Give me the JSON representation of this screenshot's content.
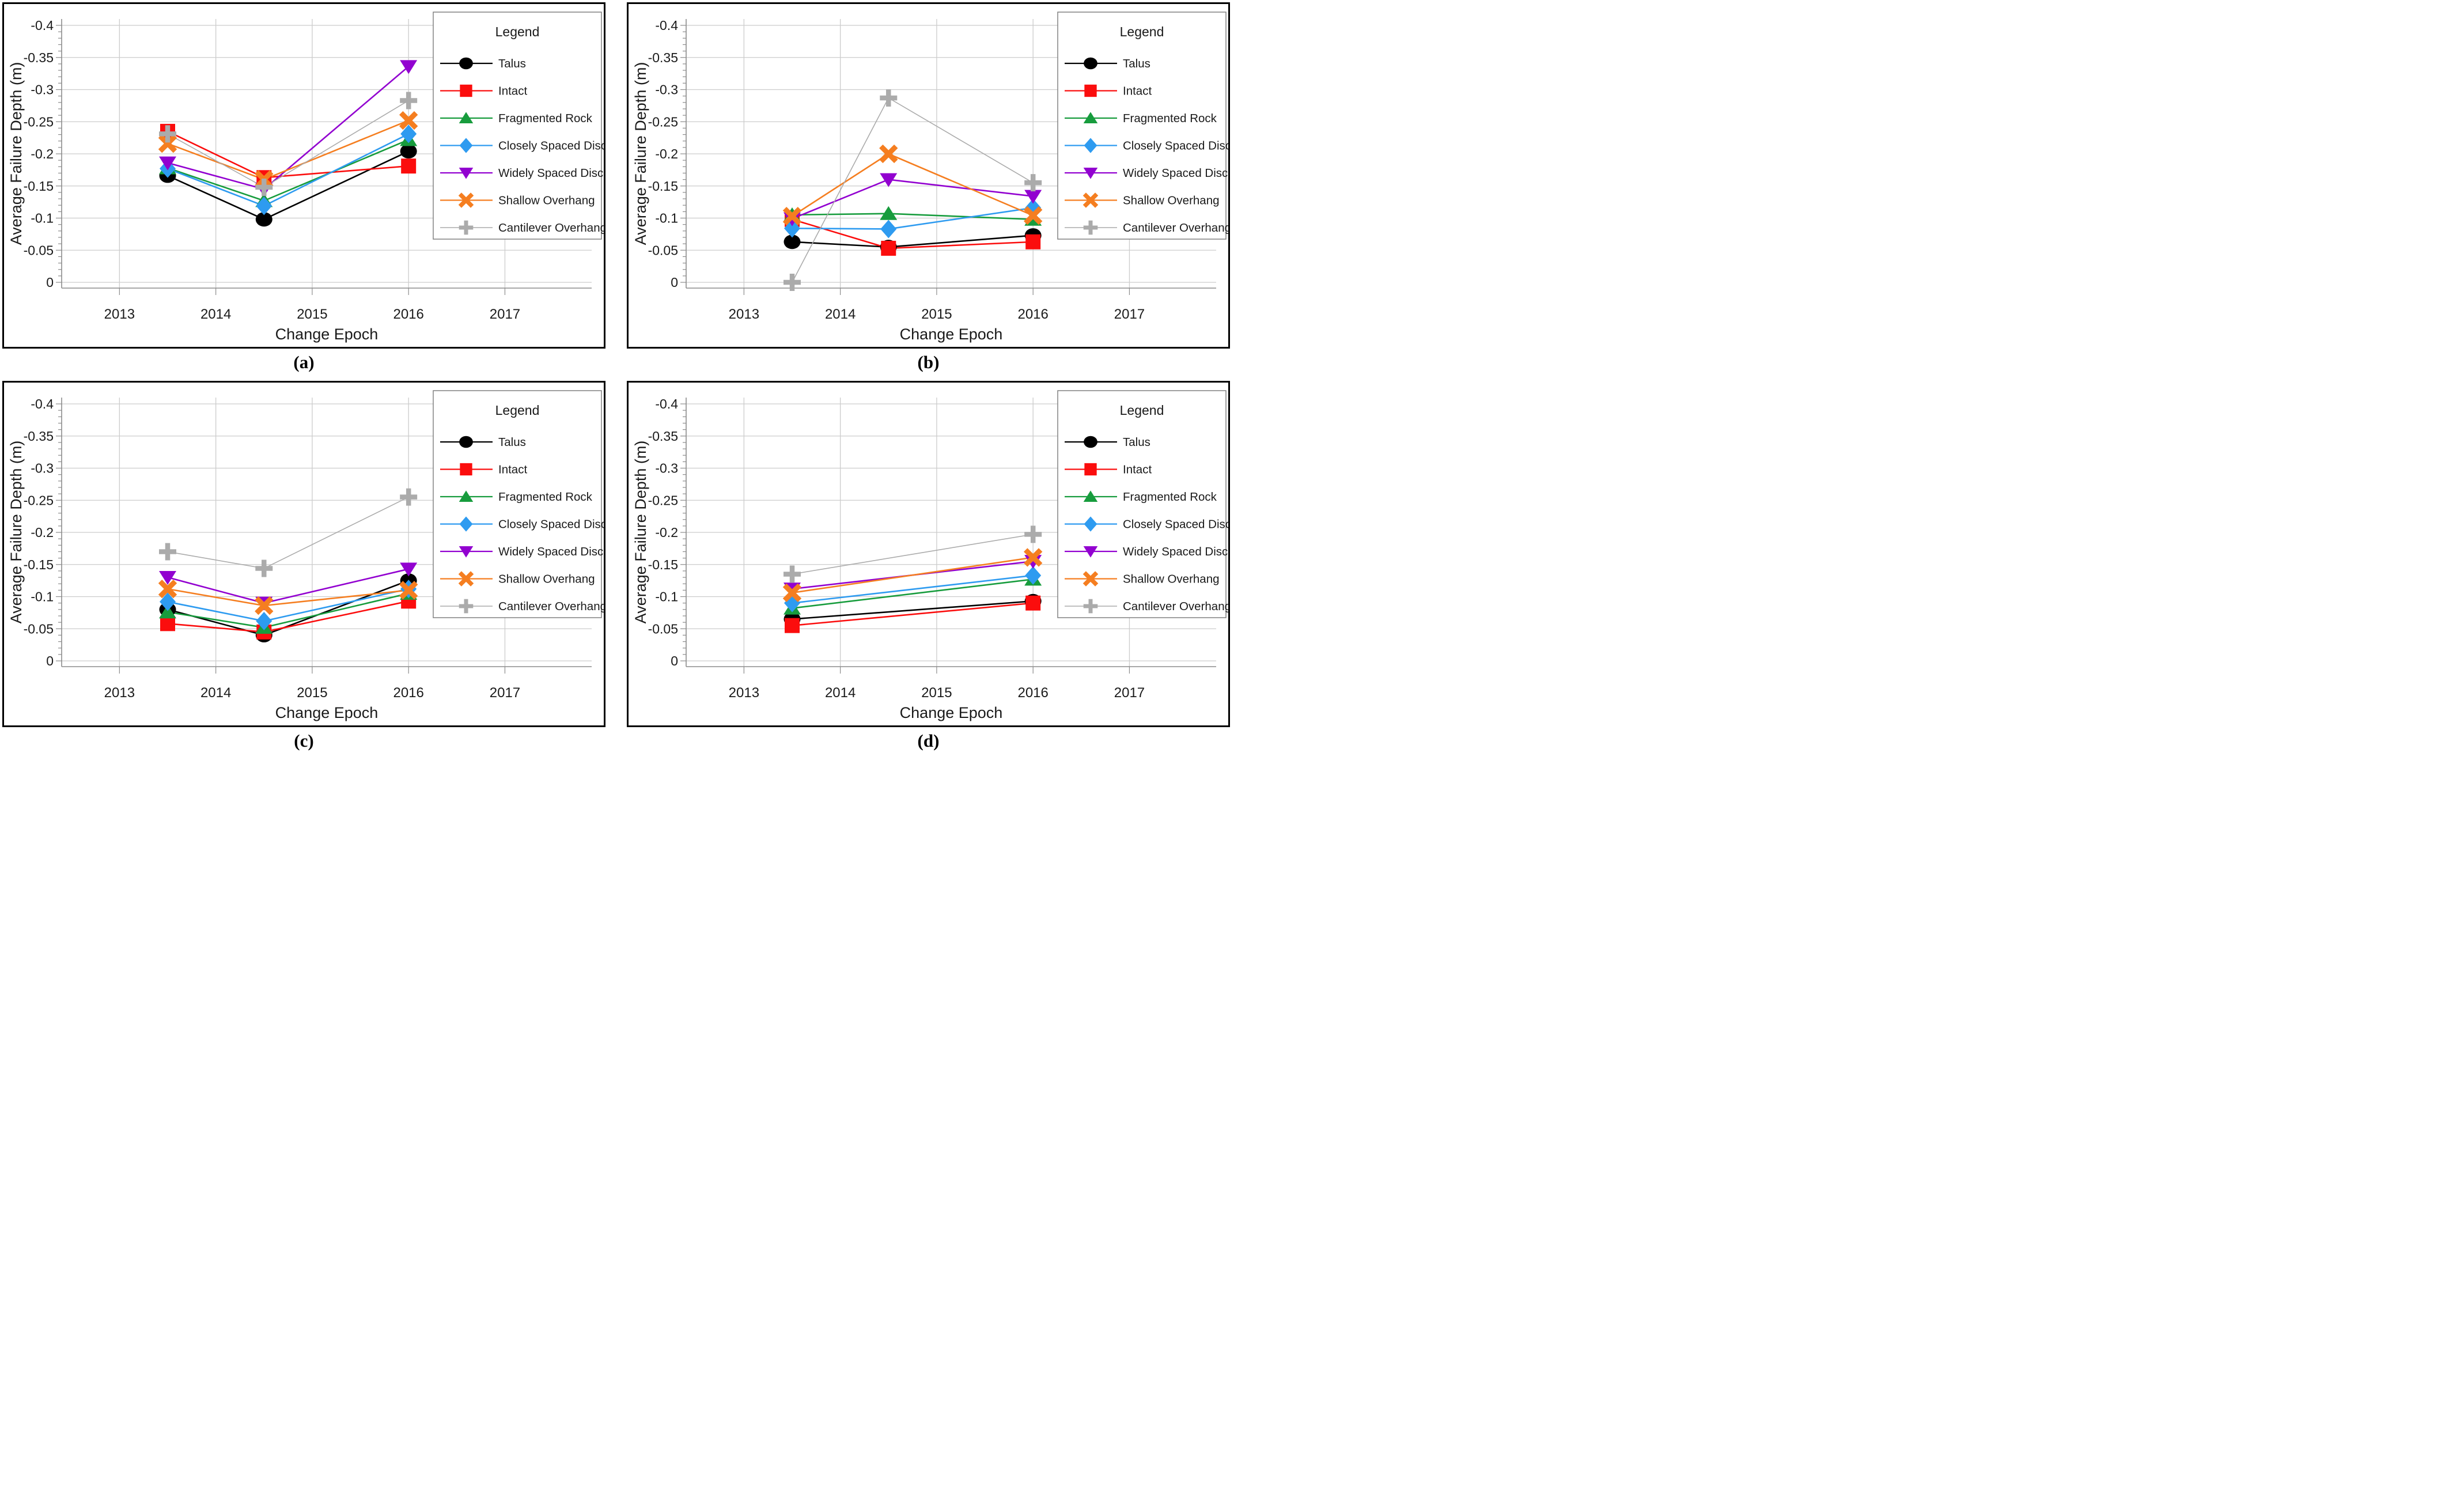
{
  "figure": {
    "xlabel": "Change Epoch",
    "ylabel": "Average Failure Depth (m)",
    "legend_title": "Legend",
    "ytick_labels": [
      "-0.4",
      "-0.35",
      "-0.3",
      "-0.25",
      "-0.2",
      "-0.15",
      "-0.1",
      "-0.05",
      "0"
    ],
    "yticks": [
      -0.4,
      -0.35,
      -0.3,
      -0.25,
      -0.2,
      -0.15,
      -0.1,
      -0.05,
      0
    ],
    "xticks": [
      2013,
      2014,
      2015,
      2016,
      2017
    ],
    "ylim": [
      -0.4,
      0
    ],
    "xlim": [
      2012.4,
      2017.9
    ],
    "grid": true,
    "legend_position": "top-right",
    "colors": {
      "grid": "#cccccc",
      "axis": "#8c8c8c",
      "text": "#1a1a1a",
      "panel_border": "#000000",
      "legend_border": "#808080"
    }
  },
  "series_defs": [
    {
      "name": "Talus",
      "color": "#000000",
      "marker": "circle"
    },
    {
      "name": "Intact",
      "color": "#fb0d0d",
      "marker": "square"
    },
    {
      "name": "Fragmented Rock",
      "color": "#179c3d",
      "marker": "triangle-up"
    },
    {
      "name": "Closely Spaced Disc",
      "color": "#2e9bf0",
      "marker": "diamond"
    },
    {
      "name": "Widely Spaced Disc",
      "color": "#9201d0",
      "marker": "triangle-down"
    },
    {
      "name": "Shallow Overhang",
      "color": "#f57e20",
      "marker": "x-cross"
    },
    {
      "name": "Cantilever Overhang",
      "color": "#ababab",
      "marker": "plus"
    }
  ],
  "chart_data": [
    {
      "type": "line",
      "panel": "a",
      "caption": "(a)",
      "xlabel": "Change Epoch",
      "ylabel": "Average Failure Depth (m)",
      "ylim": [
        -0.4,
        0
      ],
      "x": [
        2013.5,
        2014.5,
        2016
      ],
      "series": [
        {
          "name": "Talus",
          "values": [
            -0.166,
            -0.098,
            -0.204
          ]
        },
        {
          "name": "Intact",
          "values": [
            -0.235,
            -0.163,
            -0.181
          ]
        },
        {
          "name": "Fragmented Rock",
          "values": [
            -0.178,
            -0.127,
            -0.222
          ]
        },
        {
          "name": "Closely Spaced Disc",
          "values": [
            -0.177,
            -0.119,
            -0.231
          ]
        },
        {
          "name": "Widely Spaced Disc",
          "values": [
            -0.186,
            -0.145,
            -0.336
          ]
        },
        {
          "name": "Shallow Overhang",
          "values": [
            -0.216,
            -0.16,
            -0.252
          ]
        },
        {
          "name": "Cantilever Overhang",
          "values": [
            -0.231,
            -0.148,
            -0.283
          ]
        }
      ]
    },
    {
      "type": "line",
      "panel": "b",
      "caption": "(b)",
      "xlabel": "Change Epoch",
      "ylabel": "Average Failure Depth (m)",
      "ylim": [
        -0.4,
        0
      ],
      "x": [
        2013.5,
        2014.5,
        2016
      ],
      "series": [
        {
          "name": "Talus",
          "values": [
            -0.063,
            -0.055,
            -0.073
          ]
        },
        {
          "name": "Intact",
          "values": [
            -0.098,
            -0.053,
            -0.063
          ]
        },
        {
          "name": "Fragmented Rock",
          "values": [
            -0.105,
            -0.107,
            -0.098
          ]
        },
        {
          "name": "Closely Spaced Disc",
          "values": [
            -0.084,
            -0.083,
            -0.116
          ]
        },
        {
          "name": "Widely Spaced Disc",
          "values": [
            -0.099,
            -0.16,
            -0.134
          ]
        },
        {
          "name": "Shallow Overhang",
          "values": [
            -0.103,
            -0.2,
            -0.104
          ]
        },
        {
          "name": "Cantilever Overhang",
          "values": [
            0.0,
            -0.287,
            -0.155
          ]
        }
      ]
    },
    {
      "type": "line",
      "panel": "c",
      "caption": "(c)",
      "xlabel": "Change Epoch",
      "ylabel": "Average Failure Depth (m)",
      "ylim": [
        -0.4,
        0
      ],
      "x": [
        2013.5,
        2014.5,
        2016
      ],
      "series": [
        {
          "name": "Talus",
          "values": [
            -0.08,
            -0.04,
            -0.125
          ]
        },
        {
          "name": "Intact",
          "values": [
            -0.058,
            -0.045,
            -0.093
          ]
        },
        {
          "name": "Fragmented Rock",
          "values": [
            -0.076,
            -0.052,
            -0.105
          ]
        },
        {
          "name": "Closely Spaced Disc",
          "values": [
            -0.092,
            -0.062,
            -0.112
          ]
        },
        {
          "name": "Widely Spaced Disc",
          "values": [
            -0.13,
            -0.09,
            -0.143
          ]
        },
        {
          "name": "Shallow Overhang",
          "values": [
            -0.112,
            -0.086,
            -0.11
          ]
        },
        {
          "name": "Cantilever Overhang",
          "values": [
            -0.17,
            -0.144,
            -0.255
          ]
        }
      ]
    },
    {
      "type": "line",
      "panel": "d",
      "caption": "(d)",
      "xlabel": "Change Epoch",
      "ylabel": "Average Failure Depth (m)",
      "ylim": [
        -0.4,
        0
      ],
      "x": [
        2013.5,
        2016
      ],
      "series": [
        {
          "name": "Talus",
          "values": [
            -0.065,
            -0.093
          ]
        },
        {
          "name": "Intact",
          "values": [
            -0.055,
            -0.09
          ]
        },
        {
          "name": "Fragmented Rock",
          "values": [
            -0.082,
            -0.127
          ]
        },
        {
          "name": "Closely Spaced Disc",
          "values": [
            -0.09,
            -0.133
          ]
        },
        {
          "name": "Widely Spaced Disc",
          "values": [
            -0.112,
            -0.155
          ]
        },
        {
          "name": "Shallow Overhang",
          "values": [
            -0.106,
            -0.161
          ]
        },
        {
          "name": "Cantilever Overhang",
          "values": [
            -0.135,
            -0.197
          ]
        }
      ]
    }
  ]
}
